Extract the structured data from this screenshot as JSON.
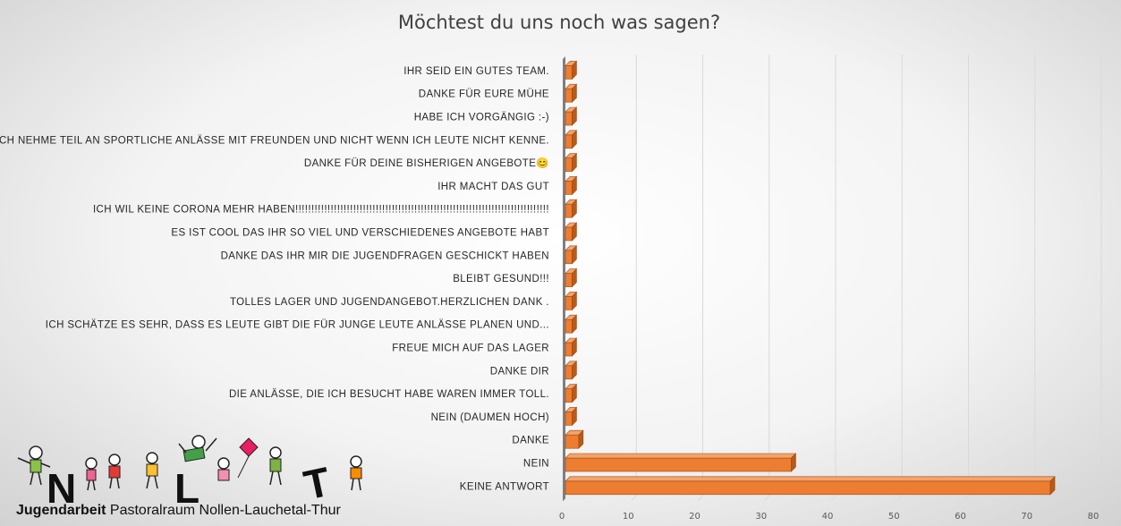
{
  "chart_data": {
    "type": "bar",
    "orientation": "horizontal",
    "title": "Möchtest du uns noch was sagen?",
    "categories": [
      "IHR SEID EIN GUTES TEAM.",
      "DANKE FÜR EURE MÜHE",
      "HABE ICH VORGÄNGIG :-)",
      "ICH NEHME TEIL AN SPORTLICHE ANLÄSSE MIT FREUNDEN UND NICHT WENN ICH LEUTE NICHT KENNE.",
      "DANKE FÜR DEINE BISHERIGEN ANGEBOTE😊",
      "IHR MACHT DAS GUT",
      "ICH WIL KEINE CORONA MEHR HABEN!!!!!!!!!!!!!!!!!!!!!!!!!!!!!!!!!!!!!!!!!!!!!!!!!!!!!!!!!!!!!!!!!!!!!!!!!!!!!!!",
      "ES IST COOL DAS IHR SO VIEL UND VERSCHIEDENES ANGEBOTE HABT",
      "DANKE DAS IHR MIR DIE JUGENDFRAGEN GESCHICKT HABEN",
      "BLEIBT GESUND!!!",
      "TOLLES LAGER UND JUGENDANGEBOT.HERZLICHEN DANK .",
      "ICH SCHÄTZE ES SEHR, DASS ES LEUTE GIBT DIE FÜR JUNGE LEUTE ANLÄSSE PLANEN UND...",
      "FREUE MICH AUF DAS LAGER",
      "DANKE DIR",
      "DIE ANLÄSSE, DIE ICH BESUCHT HABE WAREN IMMER TOLL.",
      "NEIN (DAUMEN HOCH)",
      "DANKE",
      "NEIN",
      "KEINE ANTWORT"
    ],
    "values": [
      1,
      1,
      1,
      1,
      1,
      1,
      1,
      1,
      1,
      1,
      1,
      1,
      1,
      1,
      1,
      1,
      2,
      34,
      73
    ],
    "xlim": [
      0,
      80
    ],
    "xticks": [
      0,
      10,
      20,
      30,
      40,
      50,
      60,
      70,
      80
    ],
    "grid": true,
    "colors": {
      "bar": "#ED7D31",
      "bar_top": "#F4A36B",
      "bar_side": "#B85A1A",
      "grid": "#D9D9D9"
    }
  },
  "logo": {
    "letters": [
      "N",
      "L",
      "T"
    ],
    "caption_bold": "Jugendarbeit",
    "caption_rest": " Pastoralraum Nollen-Lauchetal-Thur"
  }
}
